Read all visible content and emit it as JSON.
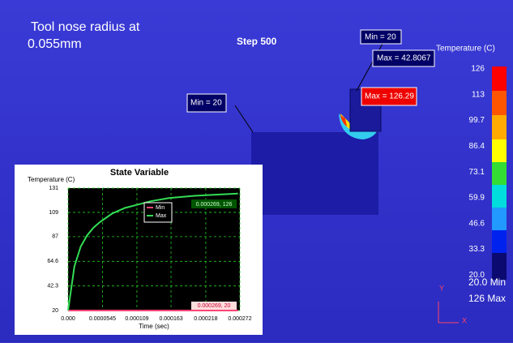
{
  "header": {
    "title_lines": [
      "Tool nose radius at",
      "0.055mm"
    ],
    "step": "Step 500"
  },
  "annotations": {
    "tool_min": "Min = 20",
    "tool_max": "Max = 42.8067",
    "max": "Max = 126.29",
    "workpiece_min": "Min = 20"
  },
  "legend": {
    "title": "Temperature (C)",
    "labels": [
      "126",
      "113",
      "99.7",
      "86.4",
      "73.1",
      "59.9",
      "46.6",
      "33.3",
      "20.0"
    ],
    "min_label": "20.0 Min",
    "max_label": "126 Max"
  },
  "axes_triad": {
    "y": "Y",
    "x": "X"
  },
  "chart_data": {
    "type": "line",
    "title": "State Variable",
    "ylabel": "Temperature (C)",
    "xlabel": "Time (sec)",
    "x": [
      0,
      1e-05,
      2e-05,
      3e-05,
      4e-05,
      5e-05,
      7e-05,
      9e-05,
      0.00011,
      0.00013,
      0.00016,
      0.0002,
      0.000269
    ],
    "series": [
      {
        "name": "Min",
        "color": "#ff4477",
        "values": [
          20,
          20,
          20,
          20,
          20,
          20,
          20,
          20,
          20,
          20,
          20,
          20,
          20
        ]
      },
      {
        "name": "Max",
        "color": "#33dd55",
        "values": [
          20,
          60,
          78,
          88,
          95,
          100,
          108,
          113,
          116,
          119,
          122,
          124,
          126
        ]
      }
    ],
    "xlim": [
      0,
      0.000272
    ],
    "ylim": [
      20,
      131
    ],
    "xticks": [
      {
        "value": 0,
        "label": "0.000"
      },
      5.45e-05,
      0.000109,
      0.000163,
      0.000218,
      0.000272
    ],
    "yticks": [
      20,
      42.3,
      64.6,
      87,
      109,
      131
    ],
    "grid": true,
    "annotations": [
      "0.000269, 126",
      "0.000269, 20"
    ]
  }
}
